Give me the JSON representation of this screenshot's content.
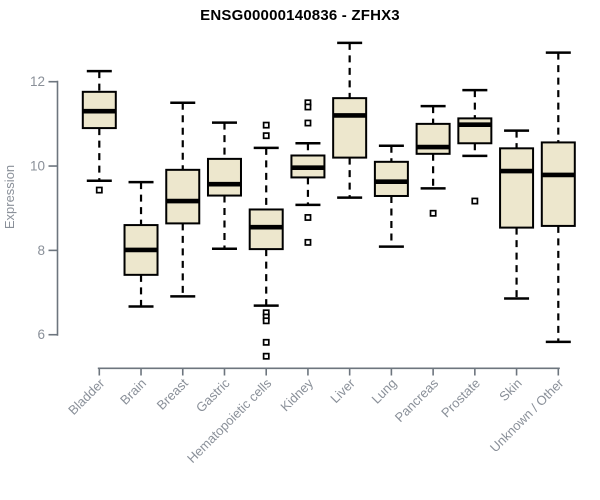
{
  "chart_data": {
    "type": "boxplot",
    "title": "ENSG00000140836 - ZFHX3",
    "xlabel": "",
    "ylabel": "Expression",
    "yticks": [
      6,
      8,
      10,
      12
    ],
    "ylim": [
      5.2,
      12.95
    ],
    "grid": false,
    "legend": "none",
    "categories": [
      "Bladder",
      "Brain",
      "Breast",
      "Gastric",
      "Hematopoietic cells",
      "Kidney",
      "Liver",
      "Lung",
      "Pancreas",
      "Prostate",
      "Skin",
      "Unknown / Other"
    ],
    "series": [
      {
        "label": "Bladder",
        "whisker_low": 9.65,
        "q1": 10.9,
        "median": 11.3,
        "q3": 11.76,
        "whisker_high": 12.25,
        "outliers": [
          9.43
        ]
      },
      {
        "label": "Brain",
        "whisker_low": 6.67,
        "q1": 7.42,
        "median": 8.01,
        "q3": 8.6,
        "whisker_high": 9.62,
        "outliers": []
      },
      {
        "label": "Breast",
        "whisker_low": 6.91,
        "q1": 8.64,
        "median": 9.17,
        "q3": 9.91,
        "whisker_high": 11.5,
        "outliers": []
      },
      {
        "label": "Gastric",
        "whisker_low": 8.04,
        "q1": 9.3,
        "median": 9.57,
        "q3": 10.17,
        "whisker_high": 11.03,
        "outliers": []
      },
      {
        "label": "Hematopoietic cells",
        "whisker_low": 6.69,
        "q1": 8.03,
        "median": 8.55,
        "q3": 8.97,
        "whisker_high": 10.43,
        "outliers": [
          10.97,
          10.72,
          6.52,
          6.42,
          6.33,
          5.82,
          5.49
        ]
      },
      {
        "label": "Kidney",
        "whisker_low": 9.08,
        "q1": 9.73,
        "median": 9.96,
        "q3": 10.25,
        "whisker_high": 10.54,
        "outliers": [
          11.5,
          11.4,
          11.02,
          8.78,
          8.19
        ]
      },
      {
        "label": "Liver",
        "whisker_low": 9.25,
        "q1": 10.2,
        "median": 11.2,
        "q3": 11.61,
        "whisker_high": 12.92,
        "outliers": []
      },
      {
        "label": "Lung",
        "whisker_low": 8.09,
        "q1": 9.29,
        "median": 9.63,
        "q3": 10.1,
        "whisker_high": 10.48,
        "outliers": []
      },
      {
        "label": "Pancreas",
        "whisker_low": 9.47,
        "q1": 10.29,
        "median": 10.45,
        "q3": 11.0,
        "whisker_high": 11.42,
        "outliers": [
          8.88
        ]
      },
      {
        "label": "Prostate",
        "whisker_low": 10.24,
        "q1": 10.54,
        "median": 10.98,
        "q3": 11.13,
        "whisker_high": 11.8,
        "outliers": [
          9.17
        ]
      },
      {
        "label": "Skin",
        "whisker_low": 6.86,
        "q1": 8.54,
        "median": 9.88,
        "q3": 10.42,
        "whisker_high": 10.84,
        "outliers": []
      },
      {
        "label": "Unknown / Other",
        "whisker_low": 5.83,
        "q1": 8.58,
        "median": 9.79,
        "q3": 10.56,
        "whisker_high": 12.69,
        "outliers": []
      }
    ],
    "colors": {
      "box_fill": "#EDE7CD",
      "box_border": "#000000",
      "median": "#000000",
      "whisker": "#000000",
      "outlier": "#000000",
      "axis_line": "#6d757e",
      "axis_text": "#8a9099",
      "title": "#000000",
      "background": "#ffffff"
    }
  }
}
